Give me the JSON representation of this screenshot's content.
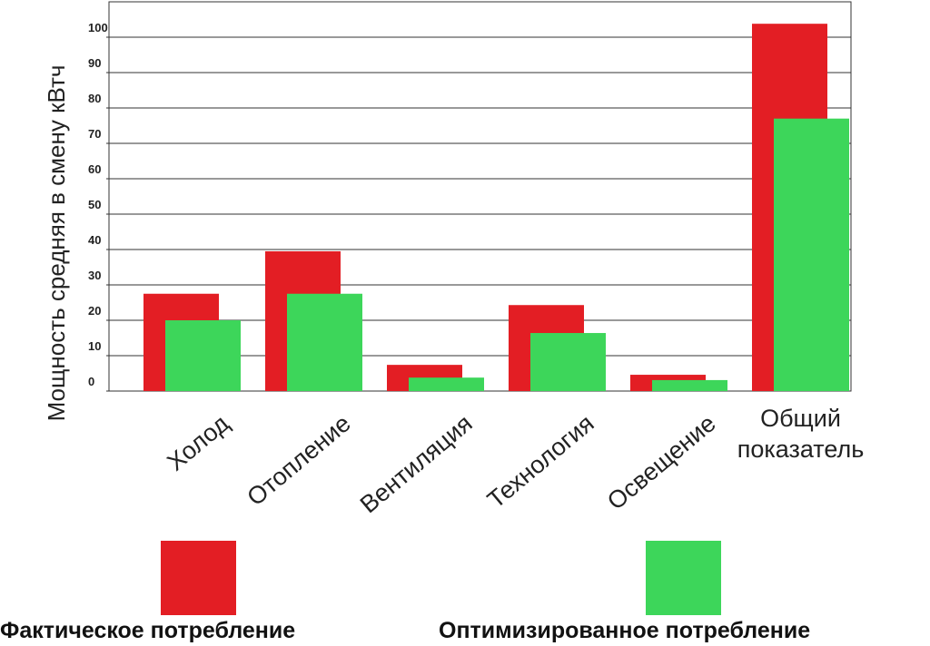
{
  "chart_data": {
    "type": "bar",
    "y_label": "Мощность средняя в смену кВтч",
    "categories": [
      "Холод",
      "Отопление",
      "Вентиляция",
      "Технология",
      "Освещение",
      "Общий показатель"
    ],
    "series": [
      {
        "name": "Фактическое потребление",
        "color": "#e31e24",
        "values": [
          27.5,
          39.5,
          7.4,
          24.3,
          4.6,
          103.8
        ]
      },
      {
        "name": "Оптимизированное потребление",
        "color": "#3dd65a",
        "values": [
          20,
          27.5,
          3.8,
          16.4,
          3.1,
          77
        ]
      }
    ],
    "ylim": [
      0,
      110
    ],
    "yticks": [
      0,
      10,
      20,
      30,
      40,
      50,
      60,
      70,
      80,
      90,
      100
    ],
    "grid": true
  }
}
